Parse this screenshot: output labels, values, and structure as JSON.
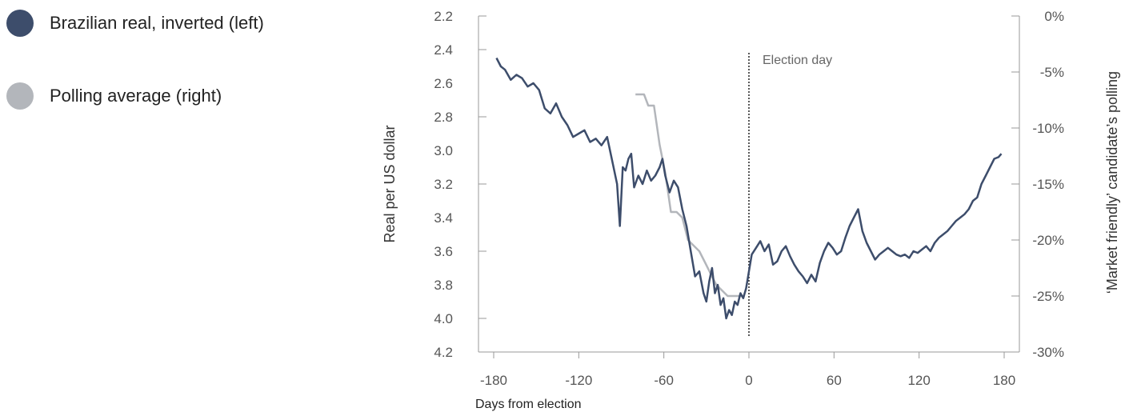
{
  "chart_data": {
    "type": "line",
    "xlabel": "Days from election",
    "ylabel_left": "Real per US dollar",
    "ylabel_right": "‘Market friendly’ candidate’s polling",
    "x_range": [
      -180,
      180
    ],
    "x_ticks": [
      -180,
      -120,
      -60,
      0,
      60,
      120,
      180
    ],
    "y_left_range_inverted": [
      2.2,
      4.2
    ],
    "y_left_ticks": [
      "2.2",
      "2.4",
      "2.6",
      "2.8",
      "3.0",
      "3.2",
      "3.4",
      "3.6",
      "3.8",
      "4.0",
      "4.2"
    ],
    "y_right_range": [
      -30,
      0
    ],
    "y_right_ticks": [
      "0%",
      "-5%",
      "-10%",
      "-15%",
      "-20%",
      "-25%",
      "-30%"
    ],
    "grid": false,
    "legend_position": "top-left",
    "annotation": {
      "x": 0,
      "label": "Election day"
    },
    "series": [
      {
        "name": "Brazilian real, inverted (left)",
        "axis": "left",
        "color": "#3d4d6b",
        "x": [
          -178,
          -175,
          -172,
          -168,
          -164,
          -160,
          -156,
          -152,
          -148,
          -144,
          -140,
          -136,
          -132,
          -128,
          -124,
          -120,
          -116,
          -112,
          -108,
          -104,
          -100,
          -96,
          -93,
          -91,
          -89,
          -87,
          -85,
          -83,
          -81,
          -78,
          -75,
          -72,
          -69,
          -66,
          -63,
          -61,
          -59,
          -56,
          -53,
          -50,
          -47,
          -44,
          -41,
          -38,
          -35,
          -32,
          -30,
          -28,
          -26,
          -24,
          -22,
          -20,
          -18,
          -16,
          -14,
          -12,
          -10,
          -8,
          -6,
          -4,
          -2,
          0,
          2,
          5,
          8,
          11,
          14,
          17,
          20,
          23,
          26,
          29,
          32,
          35,
          38,
          41,
          44,
          47,
          50,
          53,
          56,
          59,
          62,
          65,
          68,
          71,
          74,
          77,
          80,
          83,
          86,
          89,
          92,
          95,
          98,
          101,
          104,
          107,
          110,
          113,
          116,
          119,
          122,
          125,
          128,
          131,
          134,
          137,
          140,
          143,
          146,
          149,
          152,
          155,
          158,
          161,
          164,
          167,
          170,
          173,
          176,
          178
        ],
        "y": [
          2.45,
          2.5,
          2.52,
          2.58,
          2.55,
          2.57,
          2.62,
          2.6,
          2.64,
          2.75,
          2.78,
          2.72,
          2.8,
          2.85,
          2.92,
          2.9,
          2.88,
          2.95,
          2.93,
          2.97,
          2.92,
          3.08,
          3.2,
          3.45,
          3.1,
          3.12,
          3.05,
          3.02,
          3.22,
          3.15,
          3.2,
          3.12,
          3.18,
          3.15,
          3.1,
          3.05,
          3.15,
          3.25,
          3.18,
          3.22,
          3.35,
          3.45,
          3.6,
          3.75,
          3.72,
          3.85,
          3.9,
          3.78,
          3.7,
          3.85,
          3.8,
          3.92,
          3.88,
          4.0,
          3.95,
          3.98,
          3.9,
          3.92,
          3.85,
          3.88,
          3.82,
          3.72,
          3.62,
          3.58,
          3.54,
          3.6,
          3.56,
          3.68,
          3.66,
          3.6,
          3.57,
          3.63,
          3.68,
          3.72,
          3.75,
          3.79,
          3.74,
          3.78,
          3.67,
          3.6,
          3.55,
          3.58,
          3.62,
          3.6,
          3.52,
          3.45,
          3.4,
          3.35,
          3.48,
          3.55,
          3.6,
          3.65,
          3.62,
          3.6,
          3.58,
          3.6,
          3.62,
          3.63,
          3.62,
          3.64,
          3.6,
          3.61,
          3.59,
          3.57,
          3.6,
          3.55,
          3.52,
          3.5,
          3.48,
          3.45,
          3.42,
          3.4,
          3.38,
          3.35,
          3.3,
          3.28,
          3.2,
          3.15,
          3.1,
          3.05,
          3.04,
          3.02
        ]
      },
      {
        "name": "Polling average (right)",
        "axis": "right",
        "color": "#b3b6bb",
        "x": [
          -80,
          -74,
          -71,
          -67,
          -63,
          -59,
          -55,
          -51,
          -47,
          -43,
          -39,
          -35,
          -31,
          -27,
          -23,
          -19,
          -15,
          -11,
          -7,
          -3
        ],
        "y": [
          -7,
          -7,
          -8,
          -8,
          -11.5,
          -14,
          -17.5,
          -17.5,
          -18,
          -20,
          -20.5,
          -21,
          -22,
          -23,
          -24,
          -24.5,
          -25,
          -25,
          -25,
          -25
        ]
      }
    ]
  },
  "legend": [
    {
      "label": "Brazilian real, inverted (left)",
      "color": "#3d4d6b"
    },
    {
      "label": "Polling average (right)",
      "color": "#b3b6bb"
    }
  ]
}
